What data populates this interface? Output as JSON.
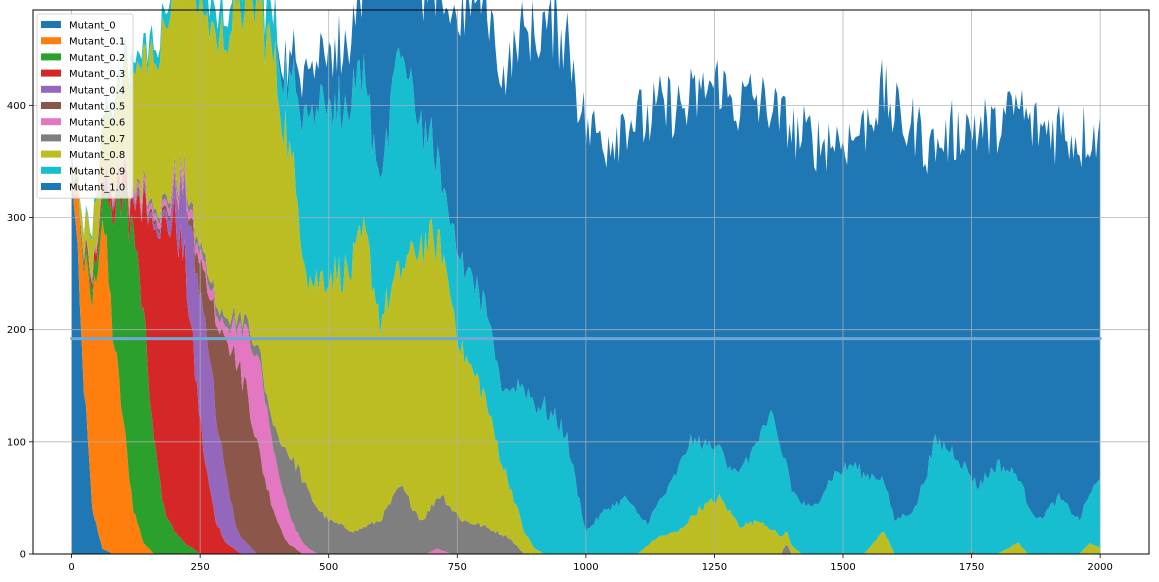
{
  "chart_data": {
    "type": "area",
    "stacked": true,
    "xlim": [
      -75,
      2095
    ],
    "ylim": [
      0,
      485
    ],
    "x_ticks": [
      0,
      250,
      500,
      750,
      1000,
      1250,
      1500,
      1750,
      2000
    ],
    "y_ticks": [
      0,
      100,
      200,
      300,
      400
    ],
    "grid": true,
    "legend_position": "upper-left",
    "x_range": [
      0,
      2000
    ],
    "series": [
      {
        "name": "Mutant_0",
        "color": "#1f77b4",
        "points": [
          [
            0,
            360
          ],
          [
            20,
            180
          ],
          [
            40,
            40
          ],
          [
            60,
            5
          ],
          [
            80,
            0
          ],
          [
            2000,
            0
          ]
        ]
      },
      {
        "name": "Mutant_0.1",
        "color": "#ff7f0e",
        "points": [
          [
            0,
            0
          ],
          [
            40,
            180
          ],
          [
            60,
            300
          ],
          [
            80,
            200
          ],
          [
            100,
            120
          ],
          [
            120,
            40
          ],
          [
            140,
            10
          ],
          [
            160,
            0
          ],
          [
            2000,
            0
          ]
        ]
      },
      {
        "name": "Mutant_0.2",
        "color": "#2ca02c",
        "points": [
          [
            0,
            0
          ],
          [
            60,
            20
          ],
          [
            80,
            100
          ],
          [
            100,
            200
          ],
          [
            120,
            250
          ],
          [
            140,
            200
          ],
          [
            160,
            100
          ],
          [
            180,
            40
          ],
          [
            200,
            20
          ],
          [
            220,
            10
          ],
          [
            250,
            0
          ],
          [
            2000,
            0
          ]
        ]
      },
      {
        "name": "Mutant_0.3",
        "color": "#d62728",
        "points": [
          [
            0,
            0
          ],
          [
            120,
            20
          ],
          [
            140,
            100
          ],
          [
            160,
            200
          ],
          [
            180,
            250
          ],
          [
            200,
            280
          ],
          [
            220,
            250
          ],
          [
            240,
            160
          ],
          [
            260,
            80
          ],
          [
            280,
            30
          ],
          [
            300,
            10
          ],
          [
            330,
            0
          ],
          [
            2000,
            0
          ]
        ]
      },
      {
        "name": "Mutant_0.4",
        "color": "#9467bd",
        "points": [
          [
            0,
            0
          ],
          [
            180,
            5
          ],
          [
            200,
            20
          ],
          [
            220,
            60
          ],
          [
            240,
            100
          ],
          [
            260,
            130
          ],
          [
            280,
            100
          ],
          [
            300,
            60
          ],
          [
            320,
            20
          ],
          [
            340,
            10
          ],
          [
            360,
            0
          ],
          [
            2000,
            0
          ]
        ]
      },
      {
        "name": "Mutant_0.5",
        "color": "#8c564b",
        "points": [
          [
            0,
            0
          ],
          [
            230,
            5
          ],
          [
            260,
            40
          ],
          [
            280,
            80
          ],
          [
            300,
            130
          ],
          [
            320,
            150
          ],
          [
            340,
            140
          ],
          [
            360,
            100
          ],
          [
            380,
            60
          ],
          [
            400,
            30
          ],
          [
            420,
            10
          ],
          [
            450,
            0
          ],
          [
            2000,
            0
          ]
        ]
      },
      {
        "name": "Mutant_0.6",
        "color": "#e377c2",
        "points": [
          [
            0,
            0
          ],
          [
            300,
            10
          ],
          [
            330,
            40
          ],
          [
            350,
            70
          ],
          [
            370,
            80
          ],
          [
            390,
            60
          ],
          [
            410,
            40
          ],
          [
            430,
            20
          ],
          [
            460,
            5
          ],
          [
            480,
            0
          ],
          [
            690,
            0
          ],
          [
            710,
            5
          ],
          [
            740,
            0
          ],
          [
            2000,
            0
          ]
        ]
      },
      {
        "name": "Mutant_0.7",
        "color": "#7f7f7f",
        "points": [
          [
            0,
            0
          ],
          [
            380,
            10
          ],
          [
            400,
            30
          ],
          [
            420,
            50
          ],
          [
            440,
            60
          ],
          [
            460,
            50
          ],
          [
            480,
            40
          ],
          [
            500,
            30
          ],
          [
            550,
            20
          ],
          [
            600,
            30
          ],
          [
            640,
            60
          ],
          [
            680,
            30
          ],
          [
            720,
            50
          ],
          [
            760,
            30
          ],
          [
            800,
            25
          ],
          [
            850,
            15
          ],
          [
            880,
            0
          ],
          [
            1380,
            0
          ],
          [
            1390,
            10
          ],
          [
            1400,
            0
          ],
          [
            1740,
            0
          ],
          [
            1750,
            3
          ],
          [
            1760,
            0
          ],
          [
            2000,
            0
          ]
        ]
      },
      {
        "name": "Mutant_0.8",
        "color": "#bcbd22",
        "points": [
          [
            0,
            0
          ],
          [
            390,
            330
          ],
          [
            420,
            280
          ],
          [
            460,
            190
          ],
          [
            500,
            220
          ],
          [
            540,
            230
          ],
          [
            570,
            260
          ],
          [
            600,
            180
          ],
          [
            640,
            190
          ],
          [
            680,
            250
          ],
          [
            720,
            220
          ],
          [
            760,
            150
          ],
          [
            800,
            120
          ],
          [
            840,
            60
          ],
          [
            880,
            20
          ],
          [
            900,
            5
          ],
          [
            920,
            0
          ],
          [
            1100,
            0
          ],
          [
            1140,
            15
          ],
          [
            1180,
            20
          ],
          [
            1220,
            40
          ],
          [
            1260,
            50
          ],
          [
            1300,
            25
          ],
          [
            1340,
            30
          ],
          [
            1380,
            15
          ],
          [
            1420,
            0
          ],
          [
            1540,
            0
          ],
          [
            1580,
            20
          ],
          [
            1600,
            0
          ],
          [
            1800,
            0
          ],
          [
            1840,
            10
          ],
          [
            1860,
            0
          ],
          [
            1960,
            0
          ],
          [
            1980,
            10
          ],
          [
            2000,
            5
          ]
        ]
      },
      {
        "name": "Mutant_0.9",
        "color": "#17becf",
        "points": [
          [
            0,
            0
          ],
          [
            390,
            30
          ],
          [
            420,
            50
          ],
          [
            460,
            150
          ],
          [
            500,
            160
          ],
          [
            540,
            150
          ],
          [
            560,
            140
          ],
          [
            600,
            130
          ],
          [
            640,
            200
          ],
          [
            680,
            110
          ],
          [
            720,
            60
          ],
          [
            760,
            80
          ],
          [
            800,
            80
          ],
          [
            840,
            70
          ],
          [
            880,
            130
          ],
          [
            920,
            130
          ],
          [
            960,
            110
          ],
          [
            1000,
            20
          ],
          [
            1040,
            40
          ],
          [
            1080,
            50
          ],
          [
            1120,
            20
          ],
          [
            1160,
            40
          ],
          [
            1200,
            70
          ],
          [
            1240,
            50
          ],
          [
            1280,
            40
          ],
          [
            1320,
            60
          ],
          [
            1360,
            100
          ],
          [
            1400,
            50
          ],
          [
            1440,
            40
          ],
          [
            1480,
            70
          ],
          [
            1520,
            80
          ],
          [
            1560,
            60
          ],
          [
            1600,
            30
          ],
          [
            1640,
            40
          ],
          [
            1680,
            100
          ],
          [
            1720,
            90
          ],
          [
            1760,
            60
          ],
          [
            1800,
            80
          ],
          [
            1840,
            60
          ],
          [
            1880,
            30
          ],
          [
            1920,
            50
          ],
          [
            1960,
            30
          ],
          [
            2000,
            60
          ]
        ]
      },
      {
        "name": "Mutant_1.0",
        "color": "#1f77b4",
        "points": [
          [
            0,
            0
          ],
          [
            380,
            0
          ],
          [
            400,
            5
          ],
          [
            460,
            40
          ],
          [
            520,
            50
          ],
          [
            560,
            60
          ],
          [
            600,
            210
          ],
          [
            640,
            120
          ],
          [
            680,
            110
          ],
          [
            720,
            160
          ],
          [
            760,
            220
          ],
          [
            800,
            270
          ],
          [
            840,
            280
          ],
          [
            880,
            320
          ],
          [
            920,
            340
          ],
          [
            960,
            360
          ],
          [
            1000,
            360
          ],
          [
            1040,
            330
          ],
          [
            1080,
            340
          ],
          [
            1120,
            360
          ],
          [
            1160,
            340
          ],
          [
            1200,
            300
          ],
          [
            1240,
            320
          ],
          [
            1280,
            330
          ],
          [
            1320,
            320
          ],
          [
            1360,
            270
          ],
          [
            1400,
            320
          ],
          [
            1440,
            330
          ],
          [
            1480,
            300
          ],
          [
            1520,
            290
          ],
          [
            1560,
            330
          ],
          [
            1600,
            360
          ],
          [
            1640,
            340
          ],
          [
            1680,
            260
          ],
          [
            1720,
            290
          ],
          [
            1760,
            320
          ],
          [
            1800,
            300
          ],
          [
            1840,
            330
          ],
          [
            1880,
            350
          ],
          [
            1920,
            330
          ],
          [
            1960,
            340
          ],
          [
            2000,
            305
          ]
        ]
      }
    ],
    "reference_line": {
      "y": 192,
      "x_range": [
        0,
        2000
      ],
      "color": "#6fa8d6"
    }
  }
}
